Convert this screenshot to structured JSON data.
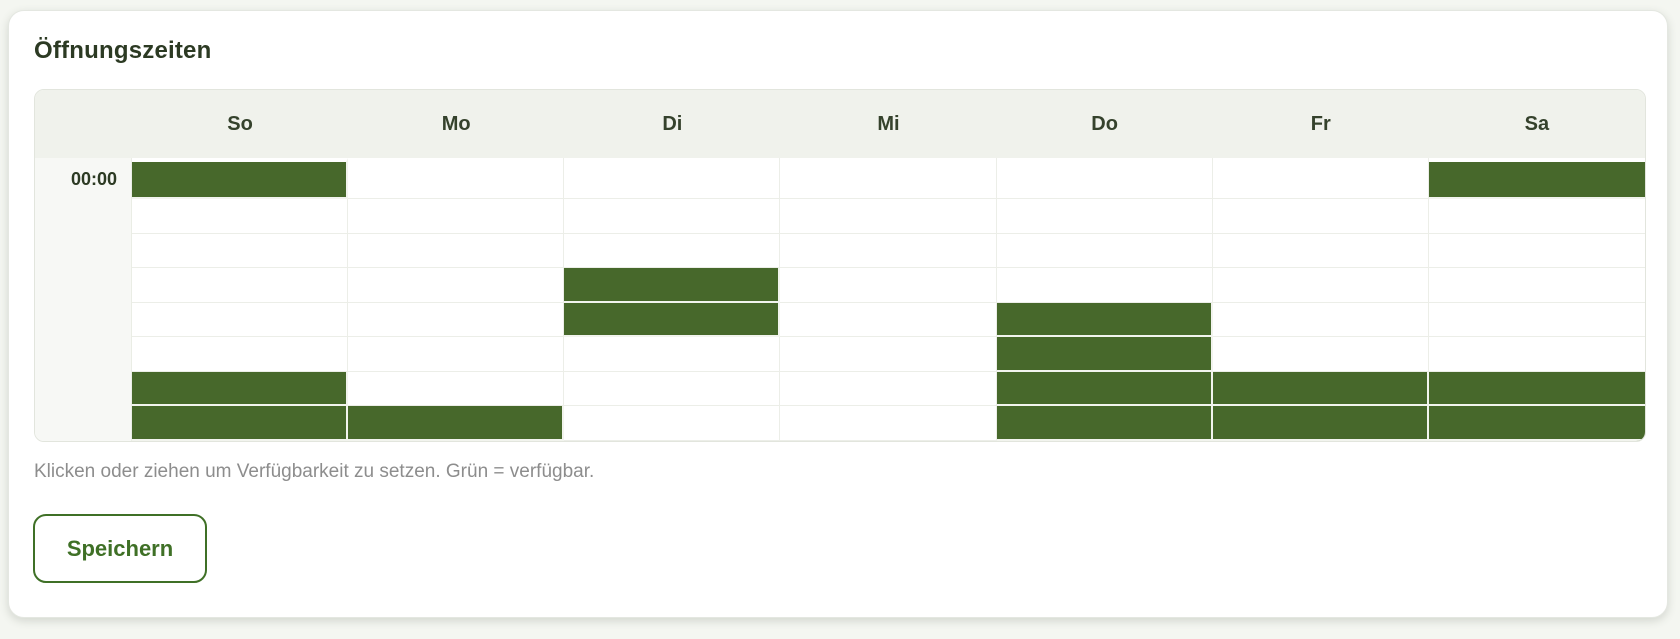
{
  "card": {
    "title": "Öffnungszeiten"
  },
  "schedule": {
    "days": [
      "So",
      "Mo",
      "Di",
      "Mi",
      "Do",
      "Fr",
      "Sa"
    ],
    "time_labels": [
      "00:00",
      "",
      "",
      "",
      "",
      "",
      "",
      ""
    ],
    "row_count": 8,
    "availability": [
      [
        1,
        0,
        0,
        0,
        0,
        0,
        1
      ],
      [
        0,
        0,
        0,
        0,
        0,
        0,
        0
      ],
      [
        0,
        0,
        0,
        0,
        0,
        0,
        0
      ],
      [
        0,
        0,
        1,
        0,
        0,
        0,
        0
      ],
      [
        0,
        0,
        1,
        0,
        1,
        0,
        0
      ],
      [
        0,
        0,
        0,
        0,
        1,
        0,
        0
      ],
      [
        1,
        0,
        0,
        0,
        1,
        1,
        1
      ],
      [
        1,
        1,
        0,
        0,
        1,
        1,
        1
      ]
    ],
    "colors": {
      "available": "#47682b",
      "header_bg": "#f0f2ec",
      "grid_line": "#eceee8"
    }
  },
  "legend": {
    "hint": "Klicken oder ziehen um Verfügbarkeit zu setzen. Grün = verfügbar."
  },
  "actions": {
    "save_label": "Speichern"
  }
}
